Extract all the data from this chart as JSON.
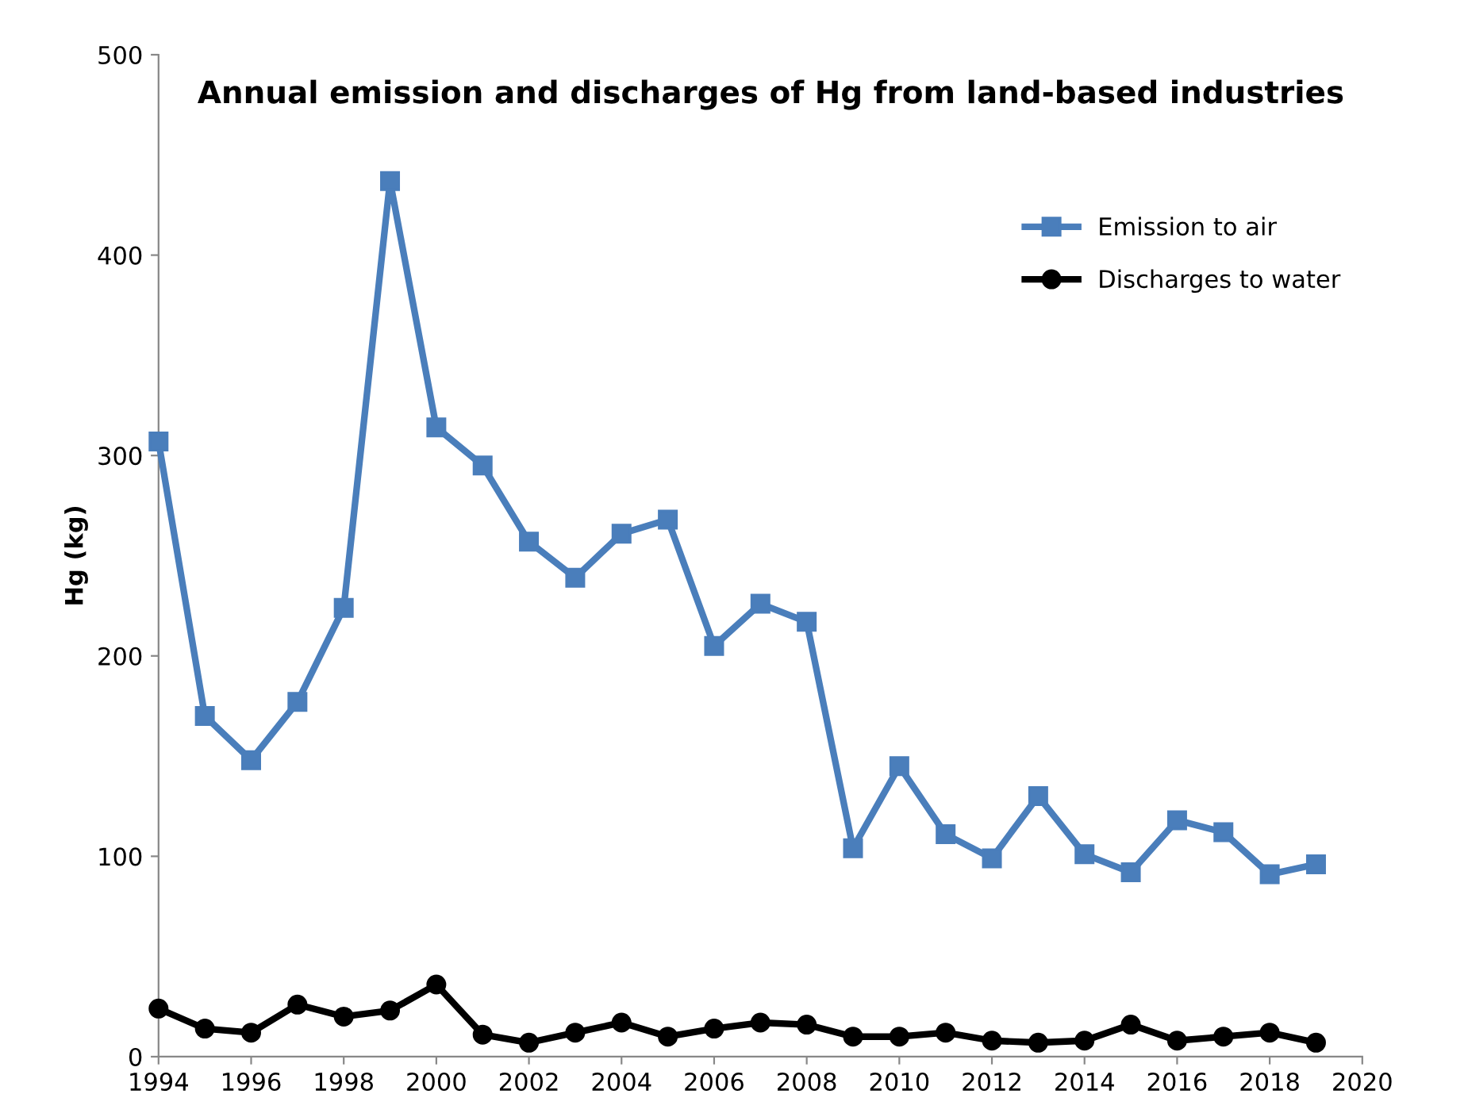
{
  "chart_data": {
    "type": "line",
    "title": "Annual emission and discharges of Hg from land-based industries",
    "ylabel": "Hg (kg)",
    "x": [
      1994,
      1995,
      1996,
      1997,
      1998,
      1999,
      2000,
      2001,
      2002,
      2003,
      2004,
      2005,
      2006,
      2007,
      2008,
      2009,
      2010,
      2011,
      2012,
      2013,
      2014,
      2015,
      2016,
      2017,
      2018,
      2019
    ],
    "series": [
      {
        "name": "Emission to air",
        "color": "#4a7ebb",
        "marker": "square",
        "values": [
          307,
          170,
          148,
          177,
          224,
          437,
          314,
          295,
          257,
          239,
          261,
          268,
          205,
          226,
          217,
          104,
          145,
          111,
          99,
          130,
          101,
          92,
          118,
          112,
          91,
          96
        ]
      },
      {
        "name": "Discharges to water",
        "color": "#000000",
        "marker": "circle",
        "values": [
          24,
          14,
          12,
          26,
          20,
          23,
          36,
          11,
          7,
          12,
          17,
          10,
          14,
          17,
          16,
          10,
          10,
          12,
          8,
          7,
          8,
          16,
          8,
          10,
          12,
          7
        ]
      }
    ],
    "xlim": [
      1994,
      2020
    ],
    "xticks": [
      1994,
      1996,
      1998,
      2000,
      2002,
      2004,
      2006,
      2008,
      2010,
      2012,
      2014,
      2016,
      2018,
      2020
    ],
    "ylim": [
      0,
      500
    ],
    "yticks": [
      0,
      100,
      200,
      300,
      400,
      500
    ],
    "grid": false,
    "legend": "top right",
    "line_style": "solid"
  }
}
